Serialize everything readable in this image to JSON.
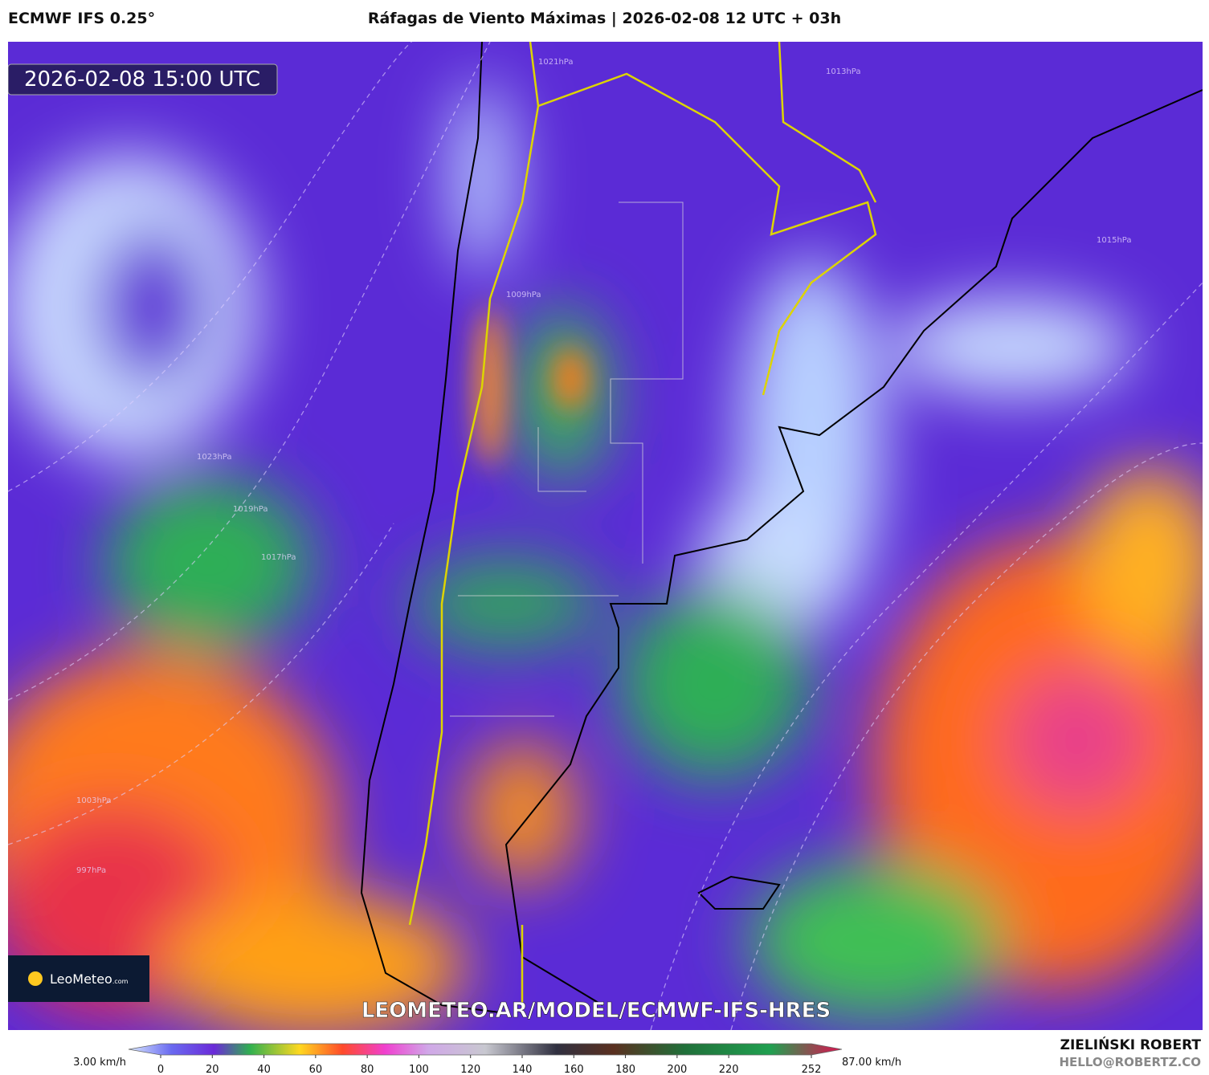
{
  "header": {
    "model": "ECMWF IFS 0.25°",
    "title": "Ráfagas de Viento Máximas | 2026-02-08 12 UTC + 03h"
  },
  "map": {
    "valid_time": "2026-02-08 15:00 UTC",
    "logo": "LeoMeteo",
    "logo_suffix": ".com",
    "watermark": "LEOMETEO.AR/MODEL/ECMWF-IFS-HRES",
    "isobar_labels": [
      "1021hPa",
      "1013hPa",
      "1009hPa",
      "1015hPa",
      "1023hPa",
      "1019hPa",
      "1017hPa",
      "1003hPa",
      "997hPa"
    ]
  },
  "colorbar": {
    "min_label": "3.00 km/h",
    "max_label": "87.00 km/h",
    "ticks": [
      0,
      20,
      40,
      60,
      80,
      100,
      120,
      140,
      160,
      180,
      200,
      220,
      252
    ]
  },
  "footer": {
    "author": "ZIELIŃSKI ROBERT",
    "email": "HELLO@ROBERTZ.CO"
  }
}
